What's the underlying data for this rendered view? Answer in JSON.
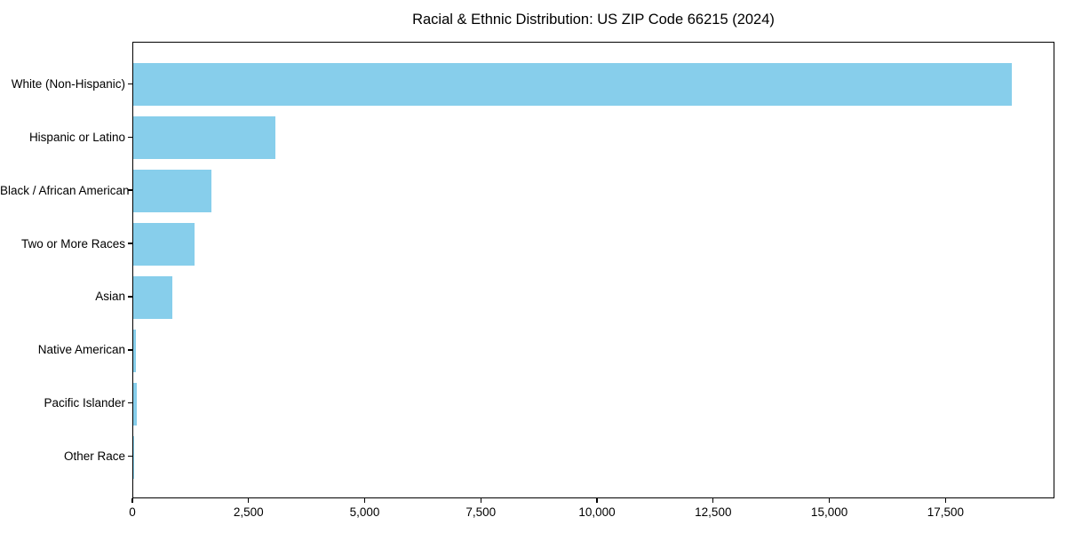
{
  "figure": {
    "title": "Racial & Ethnic Distribution: US ZIP Code 66215 (2024)"
  },
  "chart_data": {
    "type": "bar",
    "orientation": "horizontal",
    "title": "Racial & Ethnic Distribution: US ZIP Code 66215 (2024)",
    "categories": [
      "White (Non-Hispanic)",
      "Hispanic or Latino",
      "Black / African American",
      "Two or More Races",
      "Asian",
      "Native American",
      "Pacific Islander",
      "Other Race"
    ],
    "values": [
      18900,
      3060,
      1680,
      1320,
      840,
      60,
      75,
      10
    ],
    "xlabel": "",
    "ylabel": "",
    "xlim": [
      0,
      19845
    ],
    "xticks": [
      0,
      2500,
      5000,
      7500,
      10000,
      12500,
      15000,
      17500
    ],
    "xtick_labels": [
      "0",
      "2,500",
      "5,000",
      "7,500",
      "10,000",
      "12,500",
      "15,000",
      "17,500"
    ],
    "bar_color": "#87CEEB",
    "axis_color": "#000000",
    "text_color": "#000000",
    "background": "#FFFFFF",
    "grid": false,
    "legend": null
  }
}
